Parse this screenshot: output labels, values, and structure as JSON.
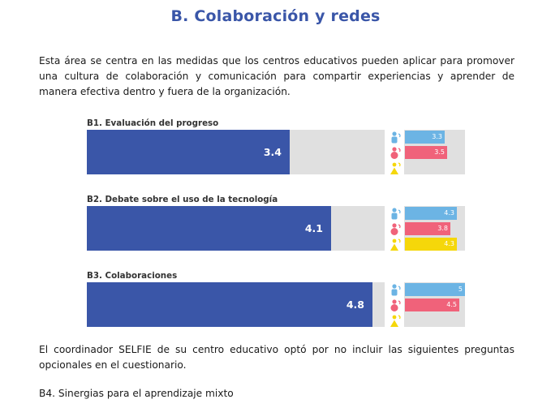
{
  "title": "B. Colaboración y redes",
  "intro": "Esta área se centra en las medidas que los centros educativos pueden aplicar para promover una cultura de colaboración y comunicación para compartir experiencias y aprender de manera efectiva dentro y fuera de la organización.",
  "colors": {
    "title": "#3a56a8",
    "main_bar": "#3a56a8",
    "track": "#e0e0e0",
    "leaders": "#6cb4e4",
    "teachers": "#f0627a",
    "students": "#f5d70a"
  },
  "roles": [
    {
      "key": "leaders",
      "icon": "school-leader-person-icon"
    },
    {
      "key": "teachers",
      "icon": "teacher-person-icon"
    },
    {
      "key": "students",
      "icon": "student-person-icon"
    }
  ],
  "scale_max": 5,
  "chart_data": [
    {
      "type": "bar",
      "label": "B1. Evaluación del progreso",
      "main_value": 3.4,
      "main_value_label": "3.4",
      "groups": {
        "leaders": {
          "value": 3.3,
          "label": "3.3"
        },
        "teachers": {
          "value": 3.5,
          "label": "3.5"
        },
        "students": null
      }
    },
    {
      "type": "bar",
      "label": "B2. Debate sobre el uso de la tecnología",
      "main_value": 4.1,
      "main_value_label": "4.1",
      "groups": {
        "leaders": {
          "value": 4.3,
          "label": "4.3"
        },
        "teachers": {
          "value": 3.8,
          "label": "3.8"
        },
        "students": {
          "value": 4.3,
          "label": "4.3"
        }
      }
    },
    {
      "type": "bar",
      "label": "B3. Colaboraciones",
      "main_value": 4.8,
      "main_value_label": "4.8",
      "groups": {
        "leaders": {
          "value": 5,
          "label": "5"
        },
        "teachers": {
          "value": 4.5,
          "label": "4.5"
        },
        "students": null
      }
    }
  ],
  "note": "El coordinador SELFIE de su centro educativo optó por no incluir las siguientes preguntas opcionales en el cuestionario.",
  "optional_item": "B4. Sinergias para el aprendizaje mixto"
}
